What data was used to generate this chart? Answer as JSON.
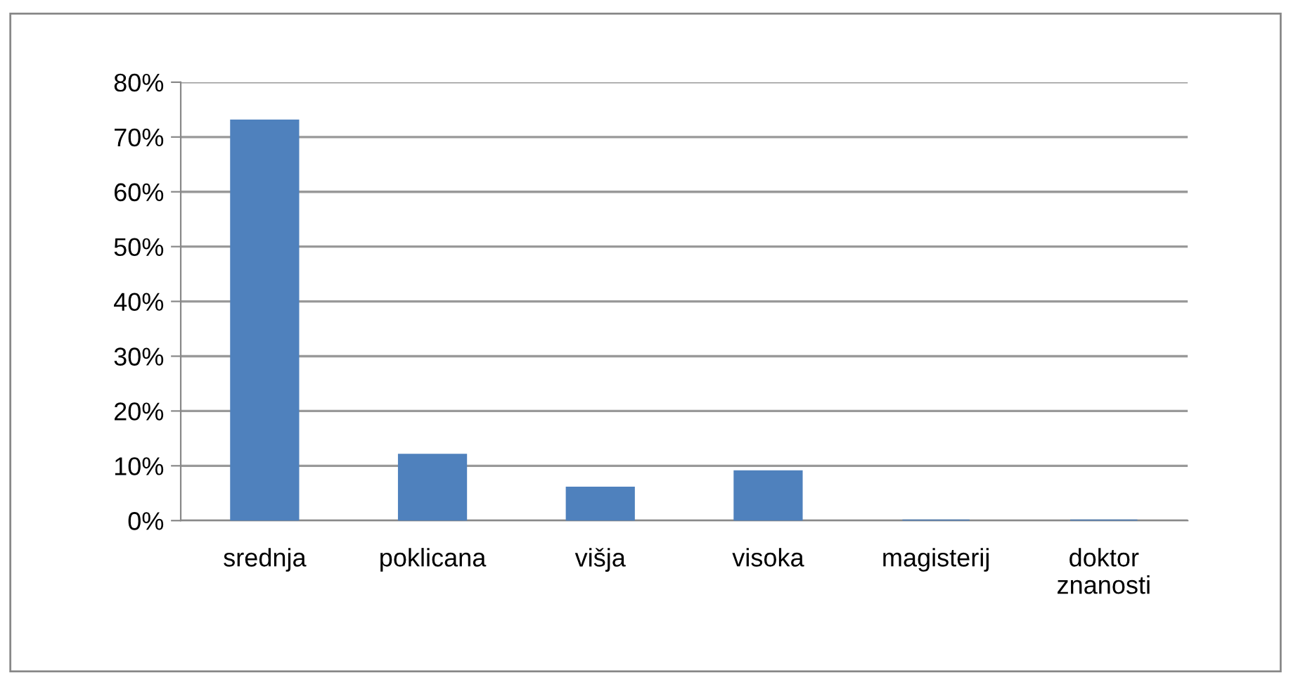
{
  "chart_data": {
    "type": "bar",
    "categories": [
      "srednja",
      "poklicana",
      "višja",
      "visoka",
      "magisterij",
      "doktor\nznanosti"
    ],
    "values": [
      73,
      12,
      6,
      9,
      0,
      0
    ],
    "color": "#4f81bd",
    "ylim": [
      0,
      80
    ],
    "yticks": [
      {
        "value": 0,
        "label": "0%"
      },
      {
        "value": 10,
        "label": "10%"
      },
      {
        "value": 20,
        "label": "20%"
      },
      {
        "value": 30,
        "label": "30%"
      },
      {
        "value": 40,
        "label": "40%"
      },
      {
        "value": 50,
        "label": "50%"
      },
      {
        "value": 60,
        "label": "60%"
      },
      {
        "value": 70,
        "label": "70%"
      },
      {
        "value": 80,
        "label": "80%"
      }
    ],
    "grid": "y",
    "legend": false
  }
}
